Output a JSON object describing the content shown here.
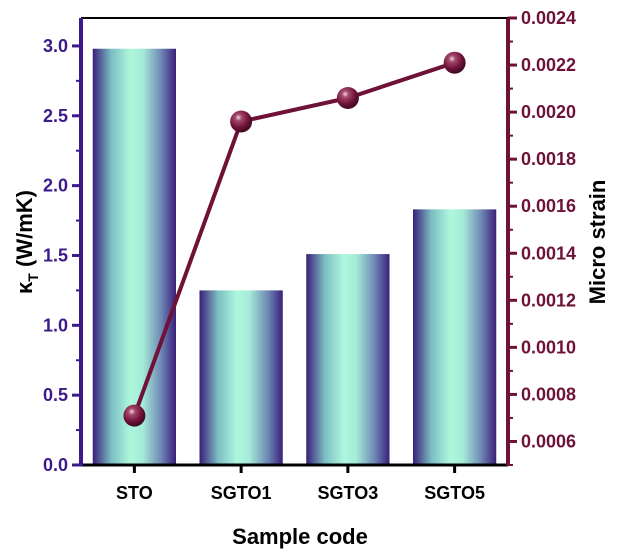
{
  "chart_data": {
    "type": "bar+line",
    "categories": [
      "STO",
      "SGTO1",
      "SGTO3",
      "SGTO5"
    ],
    "bar_series": {
      "values": [
        2.98,
        1.25,
        1.51,
        1.83
      ],
      "axis": "left"
    },
    "line_series": {
      "values": [
        0.00071,
        0.00196,
        0.00206,
        0.00221
      ],
      "axis": "right"
    },
    "xlabel": "Sample code",
    "ylabel_left": {
      "symbol": "κ",
      "subscript": "T",
      "unit": " (W/mK)"
    },
    "ylabel_right": "Micro strain",
    "ylim_left": [
      0,
      3.2
    ],
    "ylim_right": [
      0.0005,
      0.0024
    ],
    "left_ticks": [
      "0.0",
      "0.5",
      "1.0",
      "1.5",
      "2.0",
      "2.5",
      "3.0"
    ],
    "right_ticks": [
      "0.0006",
      "0.0008",
      "0.0010",
      "0.0012",
      "0.0014",
      "0.0016",
      "0.0018",
      "0.0020",
      "0.0022",
      "0.0024"
    ],
    "grid": false,
    "colors": {
      "left_axis": "#3d1a8c",
      "right_axis": "#6e1238",
      "line": "#6e1238",
      "bar_edge": "#3a1f7a",
      "bar_center": "#aef7dd"
    }
  }
}
